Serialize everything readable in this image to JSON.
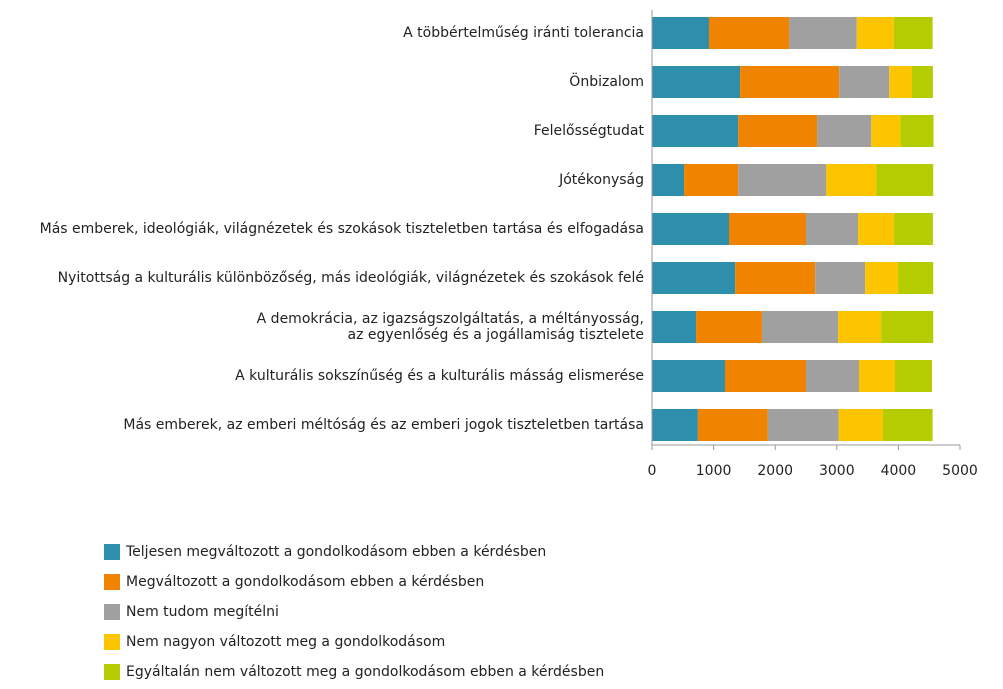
{
  "chart_data": {
    "type": "stacked_barh",
    "categories": [
      "A többértelműség iránti tolerancia",
      "Önbizalom",
      "Felelősségtudat",
      "Jótékonyság",
      "Más emberek, ideológiák, világnézetek és szokások tiszteletben tartása és elfogadása",
      "Nyitottság a kulturális különbözőség, más ideológiák, világnézetek és szokások felé",
      "A demokrácia, az igazságszolgáltatás, a méltányosság,\naz egyenlőség és a jogállamiság tisztelete",
      "A kulturális sokszínűség és a kulturális másság elismerése",
      "Más emberek, az emberi méltóság és az emberi jogok tiszteletben tartása"
    ],
    "series": [
      {
        "name": "Teljesen megváltozott a gondolkodásom ebben a kérdésben",
        "color": "#2e8fad",
        "values": [
          925,
          1430,
          1400,
          520,
          1250,
          1350,
          715,
          1185,
          745
        ]
      },
      {
        "name": "Megváltozott a gondolkodásom ebben a kérdésben",
        "color": "#f08400",
        "values": [
          1300,
          1610,
          1280,
          880,
          1250,
          1300,
          1070,
          1315,
          1135
        ]
      },
      {
        "name": "Nem tudom megítélni",
        "color": "#a0a0a0",
        "values": [
          1100,
          810,
          880,
          1430,
          845,
          810,
          1235,
          860,
          1150
        ]
      },
      {
        "name": "Nem nagyon változott meg a gondolkodásom",
        "color": "#fdc400",
        "values": [
          600,
          370,
          470,
          810,
          585,
          535,
          700,
          585,
          715
        ]
      },
      {
        "name": "Egyáltalán nem változott meg a gondolkodásom ebben a kérdésben",
        "color": "#b5cc00",
        "values": [
          630,
          340,
          540,
          925,
          630,
          570,
          845,
          600,
          810
        ]
      }
    ],
    "xlim": [
      0,
      5000
    ],
    "xticks": [
      0,
      1000,
      2000,
      3000,
      4000,
      5000
    ],
    "legend": "bottom-left"
  }
}
